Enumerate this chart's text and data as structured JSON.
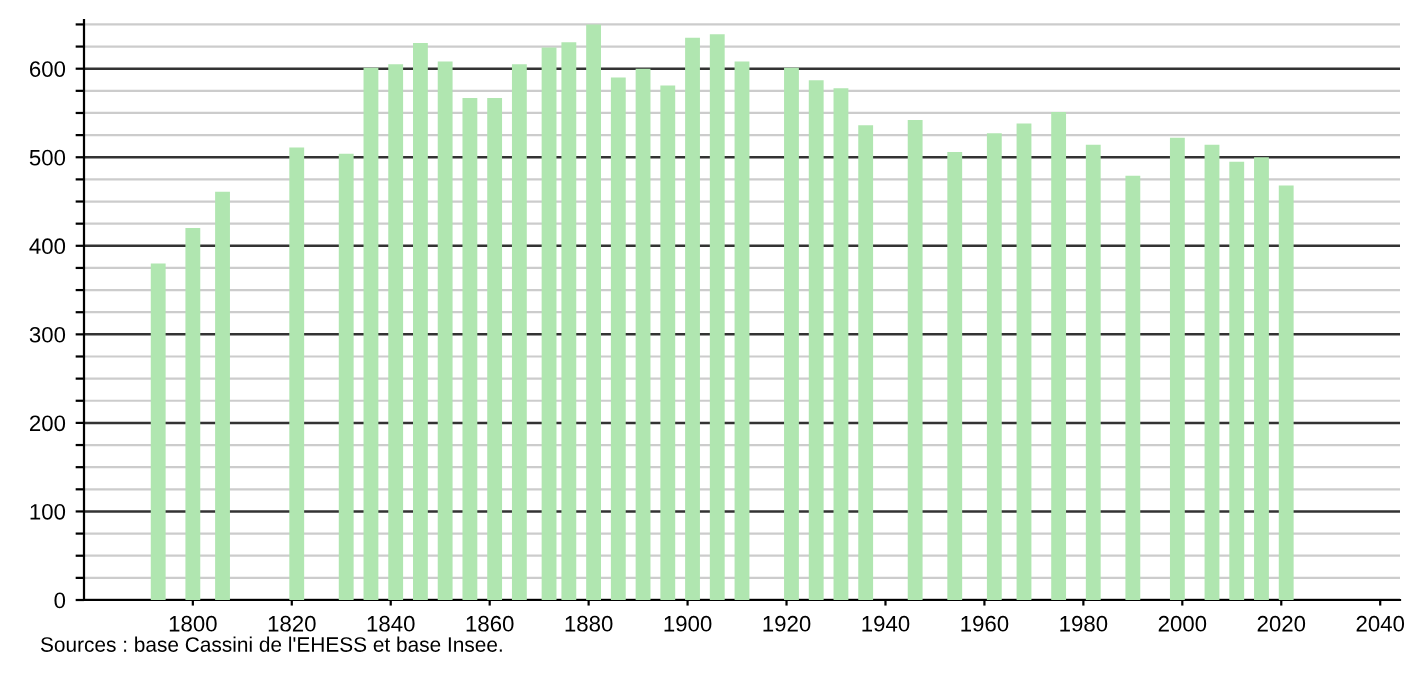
{
  "chart_data": {
    "type": "bar",
    "x": [
      1793,
      1800,
      1806,
      1821,
      1831,
      1836,
      1841,
      1846,
      1851,
      1856,
      1861,
      1866,
      1872,
      1876,
      1881,
      1886,
      1891,
      1896,
      1901,
      1906,
      1911,
      1921,
      1926,
      1931,
      1936,
      1946,
      1954,
      1962,
      1968,
      1975,
      1982,
      1990,
      1999,
      2006,
      2011,
      2016,
      2021
    ],
    "values": [
      380,
      420,
      461,
      511,
      504,
      601,
      605,
      629,
      608,
      567,
      567,
      605,
      624,
      630,
      650,
      590,
      600,
      581,
      635,
      639,
      608,
      601,
      587,
      578,
      536,
      542,
      506,
      527,
      538,
      551,
      514,
      479,
      522,
      514,
      495,
      500,
      468
    ],
    "color": "#b0e6b0",
    "xlim": [
      1778,
      2044
    ],
    "xticks": [
      1800,
      1820,
      1840,
      1860,
      1880,
      1900,
      1920,
      1940,
      1960,
      1980,
      2000,
      2020,
      2040
    ],
    "ylim": [
      0,
      655
    ],
    "yticks": [
      0,
      {
        "value": 25,
        "label": null
      },
      {
        "value": 50,
        "label": null
      },
      {
        "value": 75,
        "label": null
      },
      100,
      {
        "value": 125,
        "label": null
      },
      {
        "value": 150,
        "label": null
      },
      {
        "value": 175,
        "label": null
      },
      200,
      {
        "value": 225,
        "label": null
      },
      {
        "value": 250,
        "label": null
      },
      {
        "value": 275,
        "label": null
      },
      300,
      {
        "value": 325,
        "label": null
      },
      {
        "value": 350,
        "label": null
      },
      {
        "value": 375,
        "label": null
      },
      400,
      {
        "value": 425,
        "label": null
      },
      {
        "value": 450,
        "label": null
      },
      {
        "value": 475,
        "label": null
      },
      500,
      {
        "value": 525,
        "label": null
      },
      {
        "value": 550,
        "label": null
      },
      {
        "value": 575,
        "label": null
      },
      600,
      {
        "value": 625,
        "label": null
      },
      {
        "value": 650,
        "label": null
      }
    ],
    "grid": "y",
    "annotations": [
      "Sources : base Cassini de l'EHESS et base Insee."
    ]
  }
}
